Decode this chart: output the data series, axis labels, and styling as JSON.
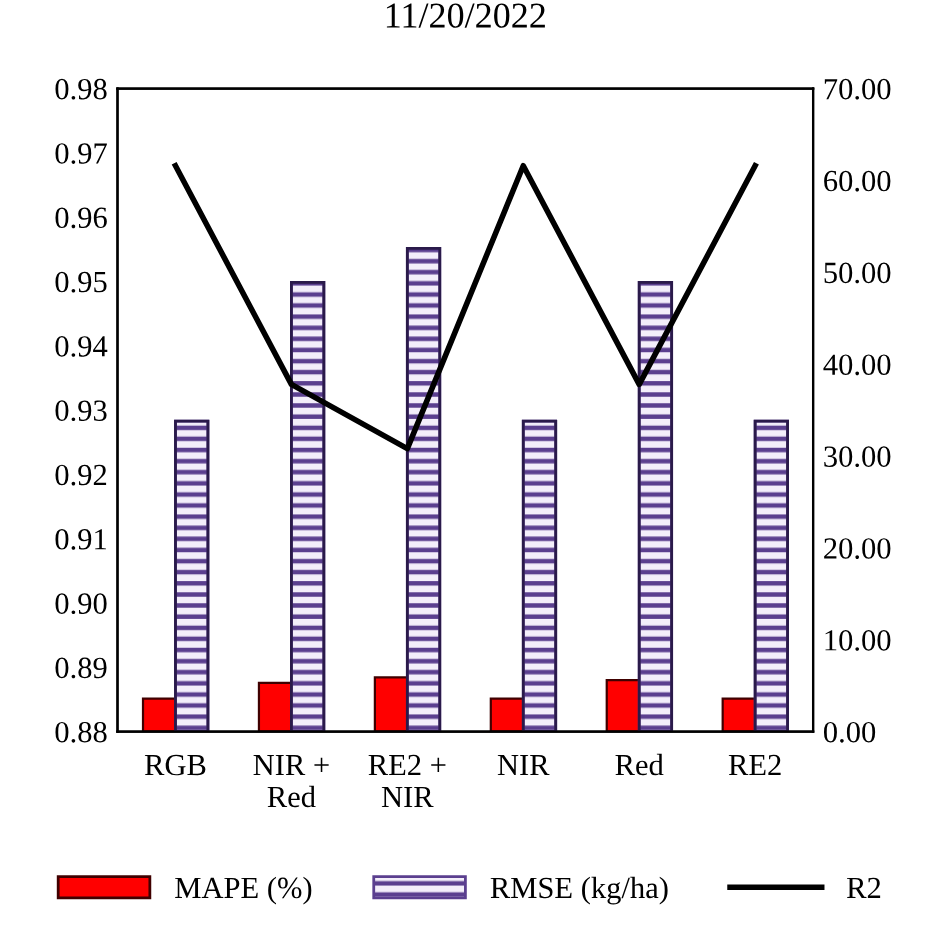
{
  "chart_data": {
    "type": "bar",
    "title": "11/20/2022",
    "categories": [
      "RGB",
      "NIR +\nRed",
      "RE2 +\nNIR",
      "NIR",
      "Red",
      "RE2"
    ],
    "series": [
      {
        "name": "MAPE (%)",
        "axis": "y2",
        "color": "#ff0000",
        "values": [
          3.6,
          5.3,
          5.9,
          3.6,
          5.6,
          3.6
        ]
      },
      {
        "name": "RMSE (kg/ha)",
        "axis": "y2",
        "color": "#5b3f8f",
        "values": [
          33.8,
          48.9,
          52.6,
          33.8,
          48.9,
          33.8
        ]
      },
      {
        "name": "R2",
        "type": "line",
        "color": "#000000",
        "values": [
          0.968,
          0.934,
          0.924,
          0.968,
          0.934,
          0.968
        ]
      }
    ],
    "ylim": [
      0.88,
      0.98
    ],
    "yticks": [
      0.88,
      0.89,
      {
        "value": 0.9,
        "label": "0.90"
      },
      0.91,
      0.92,
      0.93,
      0.94,
      0.95,
      0.96,
      0.97,
      0.98
    ],
    "y2lim": [
      0,
      70
    ],
    "y2ticks": [
      {
        "value": 0,
        "label": "0.00"
      },
      {
        "value": 10,
        "label": "10.00"
      },
      {
        "value": 20,
        "label": "20.00"
      },
      {
        "value": 30,
        "label": "30.00"
      },
      {
        "value": 40,
        "label": "40.00"
      },
      {
        "value": 50,
        "label": "50.00"
      },
      {
        "value": 60,
        "label": "60.00"
      },
      {
        "value": 70,
        "label": "70.00"
      }
    ],
    "legend": "bottom",
    "grid": false,
    "marker": "none",
    "line_style": "solid"
  }
}
